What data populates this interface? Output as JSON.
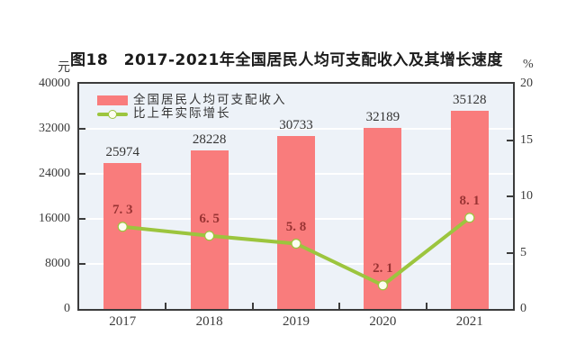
{
  "chart_data": {
    "type": "bar+line combo",
    "title": "图18　2017-2021年全国居民人均可支配收入及其增长速度",
    "categories": [
      "2017",
      "2018",
      "2019",
      "2020",
      "2021"
    ],
    "series": [
      {
        "name": "全国居民人均可支配收入",
        "type": "bar",
        "axis": "left",
        "values": [
          25974,
          28228,
          30733,
          32189,
          35128
        ],
        "value_labels": [
          "25974",
          "28228",
          "30733",
          "32189",
          "35128"
        ],
        "color": "#f97c7c"
      },
      {
        "name": "比上年实际增长",
        "type": "line",
        "axis": "right",
        "values": [
          7.3,
          6.5,
          5.8,
          2.1,
          8.1
        ],
        "value_labels": [
          "7. 3",
          "6. 5",
          "5. 8",
          "2. 1",
          "8. 1"
        ],
        "color": "#9cc53e",
        "marker_fill": "#fdfdf0"
      }
    ],
    "left_axis": {
      "unit": "元",
      "min": 0,
      "max": 40000,
      "step": 8000,
      "tick_labels": [
        "40000",
        "32000",
        "24000",
        "16000",
        "8000",
        "0"
      ]
    },
    "right_axis": {
      "unit": "%",
      "min": 0,
      "max": 20,
      "step": 5,
      "tick_labels": [
        "20",
        "15",
        "10",
        "5",
        "0"
      ]
    },
    "legend_position": "top-left-inside",
    "grid": true,
    "colors": {
      "plot_background": "#edf2f8",
      "gridline": "#ffffff",
      "plot_border": "#3c3c3c",
      "bar_value_label": "#333333",
      "growth_value_label": "#993333",
      "axis_text": "#3b3b3b"
    }
  }
}
